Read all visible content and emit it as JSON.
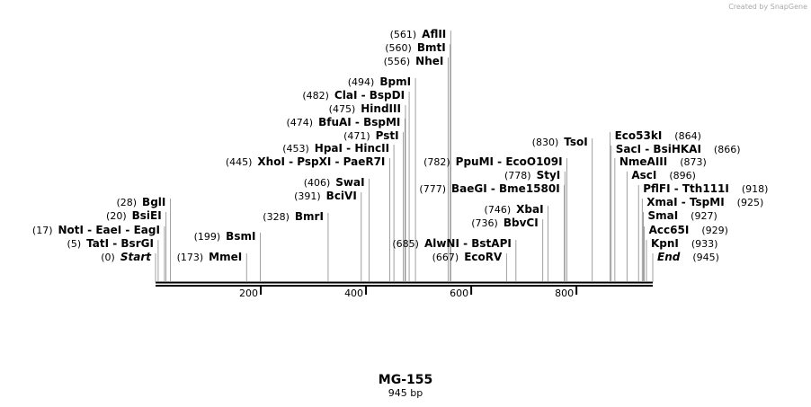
{
  "header": {
    "watermark": "Created by SnapGene"
  },
  "map": {
    "title": "MG-155",
    "subtitle": "945 bp",
    "length": 945,
    "scale_ticks": [
      200,
      400,
      600,
      800
    ],
    "sites": [
      {
        "pos": 0,
        "pos_label": "(0)",
        "name": "Start"
      },
      {
        "pos": 5,
        "pos_label": "(5)",
        "name": "TatI - BsrGI"
      },
      {
        "pos": 17,
        "pos_label": "(17)",
        "name": "NotI - EaeI - EagI"
      },
      {
        "pos": 20,
        "pos_label": "(20)",
        "name": "BsiEI"
      },
      {
        "pos": 28,
        "pos_label": "(28)",
        "name": "BglI"
      },
      {
        "pos": 173,
        "pos_label": "(173)",
        "name": "MmeI"
      },
      {
        "pos": 199,
        "pos_label": "(199)",
        "name": "BsmI"
      },
      {
        "pos": 328,
        "pos_label": "(328)",
        "name": "BmrI"
      },
      {
        "pos": 391,
        "pos_label": "(391)",
        "name": "BciVI"
      },
      {
        "pos": 406,
        "pos_label": "(406)",
        "name": "SwaI"
      },
      {
        "pos": 445,
        "pos_label": "(445)",
        "name": "XhoI - PspXI - PaeR7I"
      },
      {
        "pos": 453,
        "pos_label": "(453)",
        "name": "HpaI - HincII"
      },
      {
        "pos": 471,
        "pos_label": "(471)",
        "name": "PstI"
      },
      {
        "pos": 474,
        "pos_label": "(474)",
        "name": "BfuAI - BspMI"
      },
      {
        "pos": 475,
        "pos_label": "(475)",
        "name": "HindIII"
      },
      {
        "pos": 482,
        "pos_label": "(482)",
        "name": "ClaI - BspDI"
      },
      {
        "pos": 494,
        "pos_label": "(494)",
        "name": "BpmI"
      },
      {
        "pos": 556,
        "pos_label": "(556)",
        "name": "NheI"
      },
      {
        "pos": 560,
        "pos_label": "(560)",
        "name": "BmtI"
      },
      {
        "pos": 561,
        "pos_label": "(561)",
        "name": "AflII"
      },
      {
        "pos": 667,
        "pos_label": "(667)",
        "name": "EcoRV"
      },
      {
        "pos": 685,
        "pos_label": "(685)",
        "name": "AlwNI - BstAPI"
      },
      {
        "pos": 736,
        "pos_label": "(736)",
        "name": "BbvCI"
      },
      {
        "pos": 746,
        "pos_label": "(746)",
        "name": "XbaI"
      },
      {
        "pos": 777,
        "pos_label": "(777)",
        "name": "BaeGI - Bme1580I"
      },
      {
        "pos": 778,
        "pos_label": "(778)",
        "name": "StyI"
      },
      {
        "pos": 782,
        "pos_label": "(782)",
        "name": "PpuMI - EcoO109I"
      },
      {
        "pos": 830,
        "pos_label": "(830)",
        "name": "TsoI"
      },
      {
        "pos": 864,
        "pos_label": "(864)",
        "name": "Eco53kI"
      },
      {
        "pos": 866,
        "pos_label": "(866)",
        "name": "SacI - BsiHKAI"
      },
      {
        "pos": 873,
        "pos_label": "(873)",
        "name": "NmeAIII"
      },
      {
        "pos": 896,
        "pos_label": "(896)",
        "name": "AscI"
      },
      {
        "pos": 918,
        "pos_label": "(918)",
        "name": "PflFI - Tth111I"
      },
      {
        "pos": 925,
        "pos_label": "(925)",
        "name": "XmaI - TspMI"
      },
      {
        "pos": 927,
        "pos_label": "(927)",
        "name": "SmaI"
      },
      {
        "pos": 929,
        "pos_label": "(929)",
        "name": "Acc65I"
      },
      {
        "pos": 933,
        "pos_label": "(933)",
        "name": "KpnI"
      },
      {
        "pos": 945,
        "pos_label": "(945)",
        "name": "End"
      }
    ]
  }
}
